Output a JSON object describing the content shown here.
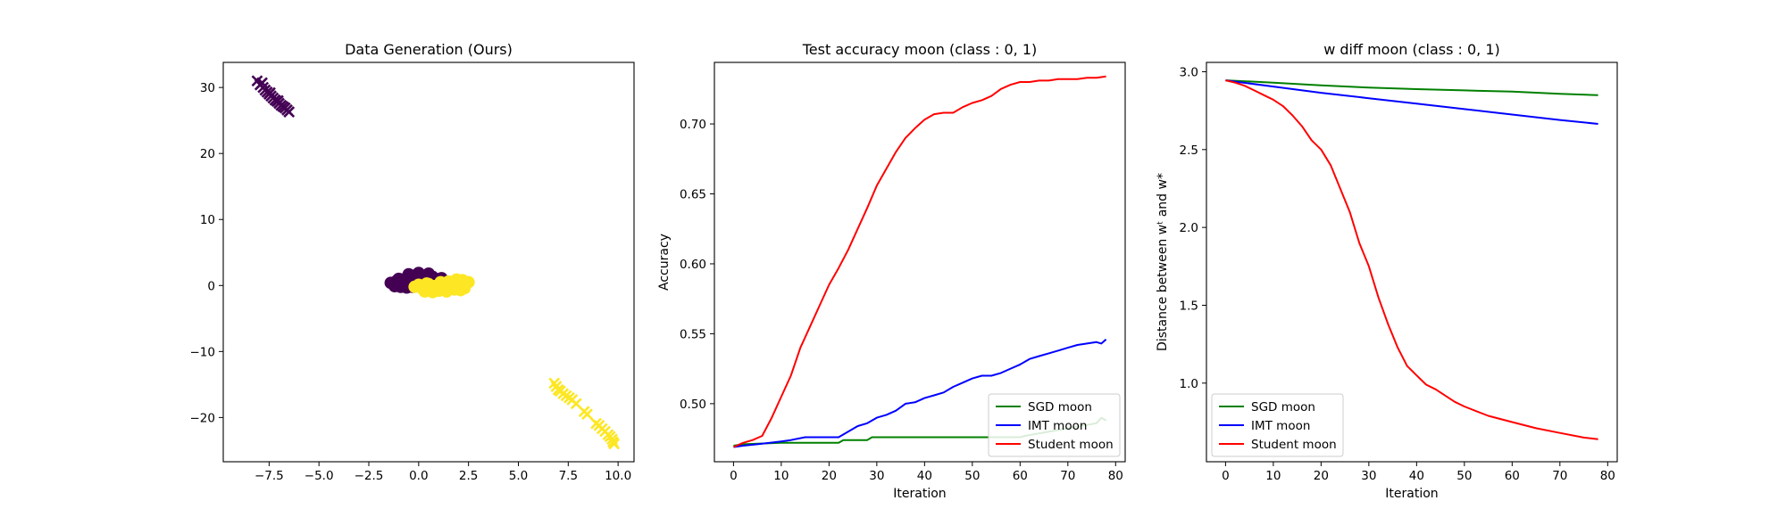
{
  "chart_data": [
    {
      "type": "scatter",
      "title": "Data Generation (Ours)",
      "xlabel": "",
      "ylabel": "",
      "xlim": [
        -9.8,
        10.8
      ],
      "ylim": [
        -26.7,
        33.8
      ],
      "xticks": [
        -7.5,
        -5.0,
        -2.5,
        0.0,
        2.5,
        5.0,
        7.5,
        10.0
      ],
      "xtick_labels": [
        "−7.5",
        "−5.0",
        "−2.5",
        "0.0",
        "2.5",
        "5.0",
        "7.5",
        "10.0"
      ],
      "yticks": [
        -20,
        -10,
        0,
        10,
        20,
        30
      ],
      "ytick_labels": [
        "−20",
        "−10",
        "0",
        "10",
        "20",
        "30"
      ],
      "grid": false,
      "colors": {
        "class_0": "#440154",
        "class_1": "#fde725"
      },
      "series": [
        {
          "class": 0,
          "marker": "x",
          "x": [
            -8.1,
            -7.95,
            -7.8,
            -7.7,
            -7.6,
            -7.5,
            -7.4,
            -7.3,
            -7.2,
            -7.1,
            -7.0,
            -6.9,
            -6.8,
            -6.7,
            -6.6,
            -6.5,
            -7.85,
            -7.45,
            -7.05
          ],
          "y": [
            31.0,
            30.4,
            30.0,
            29.6,
            29.3,
            29.0,
            28.7,
            28.4,
            28.1,
            27.9,
            27.6,
            27.3,
            27.1,
            26.9,
            26.6,
            26.3,
            30.7,
            29.2,
            28.0
          ]
        },
        {
          "class": 1,
          "marker": "x",
          "x": [
            6.8,
            6.9,
            7.0,
            7.1,
            7.25,
            7.4,
            7.55,
            7.7,
            7.9,
            8.3,
            8.45,
            8.9,
            9.05,
            9.2,
            9.35,
            9.5,
            9.6,
            9.7,
            9.75,
            9.8
          ],
          "y": [
            -14.8,
            -15.3,
            -15.8,
            -16.0,
            -16.4,
            -16.7,
            -17.0,
            -17.3,
            -17.9,
            -19.1,
            -19.5,
            -20.9,
            -21.2,
            -21.7,
            -22.1,
            -22.6,
            -22.9,
            -23.3,
            -23.7,
            -24.0
          ]
        },
        {
          "class": 0,
          "marker": "o",
          "x": [
            -1.4,
            -1.25,
            -1.1,
            -0.95,
            -0.8,
            -0.65,
            -0.5,
            -0.35,
            -0.2,
            -0.05,
            0.1,
            0.25,
            0.4,
            0.55,
            0.7,
            0.85,
            1.0,
            1.15,
            1.3,
            -1.2,
            -0.9,
            -0.6,
            -0.3,
            0.0,
            0.3,
            0.6,
            0.9,
            -1.0,
            -0.5,
            0.0,
            0.5,
            -0.2,
            0.2
          ],
          "y": [
            0.4,
            0.2,
            0.7,
            0.1,
            0.9,
            0.3,
            1.2,
            0.5,
            1.5,
            0.8,
            1.6,
            1.1,
            1.4,
            0.9,
            1.3,
            1.0,
            0.7,
            1.1,
            0.6,
            -0.1,
            -0.2,
            -0.3,
            -0.2,
            0.1,
            0.2,
            0.1,
            0.3,
            1.0,
            1.7,
            1.9,
            1.8,
            0.0,
            0.6
          ]
        },
        {
          "class": 1,
          "marker": "o",
          "x": [
            -0.2,
            0.0,
            0.2,
            0.4,
            0.6,
            0.8,
            1.0,
            1.2,
            1.4,
            1.6,
            1.8,
            2.0,
            2.2,
            2.35,
            2.5,
            0.3,
            0.7,
            1.1,
            1.5,
            1.9,
            2.3,
            0.5,
            1.3,
            2.1,
            0.9,
            1.7
          ],
          "y": [
            -0.2,
            0.1,
            -0.5,
            0.3,
            -0.7,
            -0.1,
            -0.8,
            -0.3,
            -0.9,
            -0.4,
            -0.6,
            0.4,
            0.8,
            0.2,
            0.5,
            -0.9,
            -1.0,
            0.5,
            0.6,
            0.9,
            -0.4,
            0.2,
            -0.2,
            -0.7,
            -0.5,
            0.1
          ]
        }
      ]
    },
    {
      "type": "line",
      "title": "Test accuracy moon (class : 0, 1)",
      "xlabel": "Iteration",
      "ylabel": "Accuracy",
      "xlim": [
        -4,
        82
      ],
      "ylim": [
        0.4585,
        0.744
      ],
      "xticks": [
        0,
        10,
        20,
        30,
        40,
        50,
        60,
        70,
        80
      ],
      "xtick_labels": [
        "0",
        "10",
        "20",
        "30",
        "40",
        "50",
        "60",
        "70",
        "80"
      ],
      "yticks": [
        0.5,
        0.55,
        0.6,
        0.65,
        0.7
      ],
      "ytick_labels": [
        "0.50",
        "0.55",
        "0.60",
        "0.65",
        "0.70"
      ],
      "grid": false,
      "legend_position": "lower-right",
      "series": [
        {
          "name": "SGD moon",
          "color": "#008000",
          "x": [
            0,
            2,
            10,
            22,
            23,
            28,
            29,
            60,
            61,
            76,
            77,
            78
          ],
          "y": [
            0.47,
            0.471,
            0.472,
            0.472,
            0.474,
            0.474,
            0.476,
            0.476,
            0.477,
            0.486,
            0.49,
            0.488
          ]
        },
        {
          "name": "IMT moon",
          "color": "#0000ff",
          "x": [
            0,
            2,
            5,
            10,
            12,
            15,
            22,
            24,
            26,
            28,
            30,
            32,
            34,
            36,
            38,
            40,
            42,
            44,
            46,
            48,
            50,
            52,
            54,
            56,
            58,
            60,
            62,
            64,
            66,
            68,
            70,
            72,
            74,
            76,
            77,
            78
          ],
          "y": [
            0.469,
            0.47,
            0.471,
            0.473,
            0.474,
            0.476,
            0.476,
            0.48,
            0.484,
            0.486,
            0.49,
            0.492,
            0.495,
            0.5,
            0.501,
            0.504,
            0.506,
            0.508,
            0.512,
            0.515,
            0.518,
            0.52,
            0.52,
            0.522,
            0.525,
            0.528,
            0.532,
            0.534,
            0.536,
            0.538,
            0.54,
            0.542,
            0.543,
            0.544,
            0.543,
            0.546
          ]
        },
        {
          "name": "Student moon",
          "color": "#ff0000",
          "x": [
            0,
            2,
            4,
            6,
            8,
            10,
            12,
            14,
            16,
            18,
            20,
            22,
            24,
            26,
            28,
            30,
            32,
            34,
            36,
            38,
            40,
            42,
            44,
            46,
            48,
            50,
            52,
            54,
            56,
            58,
            60,
            62,
            64,
            66,
            68,
            70,
            72,
            74,
            76,
            78
          ],
          "y": [
            0.469,
            0.472,
            0.474,
            0.477,
            0.49,
            0.505,
            0.52,
            0.54,
            0.555,
            0.57,
            0.585,
            0.597,
            0.61,
            0.625,
            0.64,
            0.656,
            0.668,
            0.68,
            0.69,
            0.697,
            0.703,
            0.707,
            0.708,
            0.708,
            0.712,
            0.715,
            0.717,
            0.72,
            0.725,
            0.728,
            0.73,
            0.73,
            0.731,
            0.731,
            0.732,
            0.732,
            0.732,
            0.733,
            0.733,
            0.734
          ]
        }
      ]
    },
    {
      "type": "line",
      "title": "w diff moon (class : 0, 1)",
      "xlabel": "Iteration",
      "ylabel": "Distance between wᵗ and w*",
      "xlim": [
        -4,
        82
      ],
      "ylim": [
        0.495,
        3.06
      ],
      "xticks": [
        0,
        10,
        20,
        30,
        40,
        50,
        60,
        70,
        80
      ],
      "xtick_labels": [
        "0",
        "10",
        "20",
        "30",
        "40",
        "50",
        "60",
        "70",
        "80"
      ],
      "yticks": [
        1.0,
        1.5,
        2.0,
        2.5,
        3.0
      ],
      "ytick_labels": [
        "1.0",
        "1.5",
        "2.0",
        "2.5",
        "3.0"
      ],
      "grid": false,
      "legend_position": "lower-left",
      "series": [
        {
          "name": "SGD moon",
          "color": "#008000",
          "x": [
            0,
            10,
            20,
            30,
            40,
            50,
            60,
            70,
            78
          ],
          "y": [
            2.945,
            2.93,
            2.912,
            2.898,
            2.888,
            2.88,
            2.872,
            2.858,
            2.85
          ]
        },
        {
          "name": "IMT moon",
          "color": "#0000ff",
          "x": [
            0,
            10,
            20,
            30,
            40,
            50,
            60,
            70,
            78
          ],
          "y": [
            2.945,
            2.905,
            2.865,
            2.83,
            2.795,
            2.76,
            2.725,
            2.69,
            2.665
          ]
        },
        {
          "name": "Student moon",
          "color": "#ff0000",
          "x": [
            0,
            2,
            4,
            6,
            8,
            10,
            12,
            14,
            16,
            18,
            20,
            22,
            24,
            26,
            28,
            30,
            32,
            34,
            36,
            38,
            40,
            42,
            44,
            46,
            48,
            50,
            55,
            60,
            65,
            70,
            75,
            78
          ],
          "y": [
            2.945,
            2.93,
            2.91,
            2.88,
            2.85,
            2.82,
            2.78,
            2.72,
            2.65,
            2.56,
            2.5,
            2.4,
            2.25,
            2.1,
            1.9,
            1.75,
            1.55,
            1.38,
            1.23,
            1.11,
            1.05,
            0.99,
            0.96,
            0.92,
            0.88,
            0.85,
            0.79,
            0.75,
            0.71,
            0.68,
            0.65,
            0.64
          ]
        }
      ]
    }
  ]
}
